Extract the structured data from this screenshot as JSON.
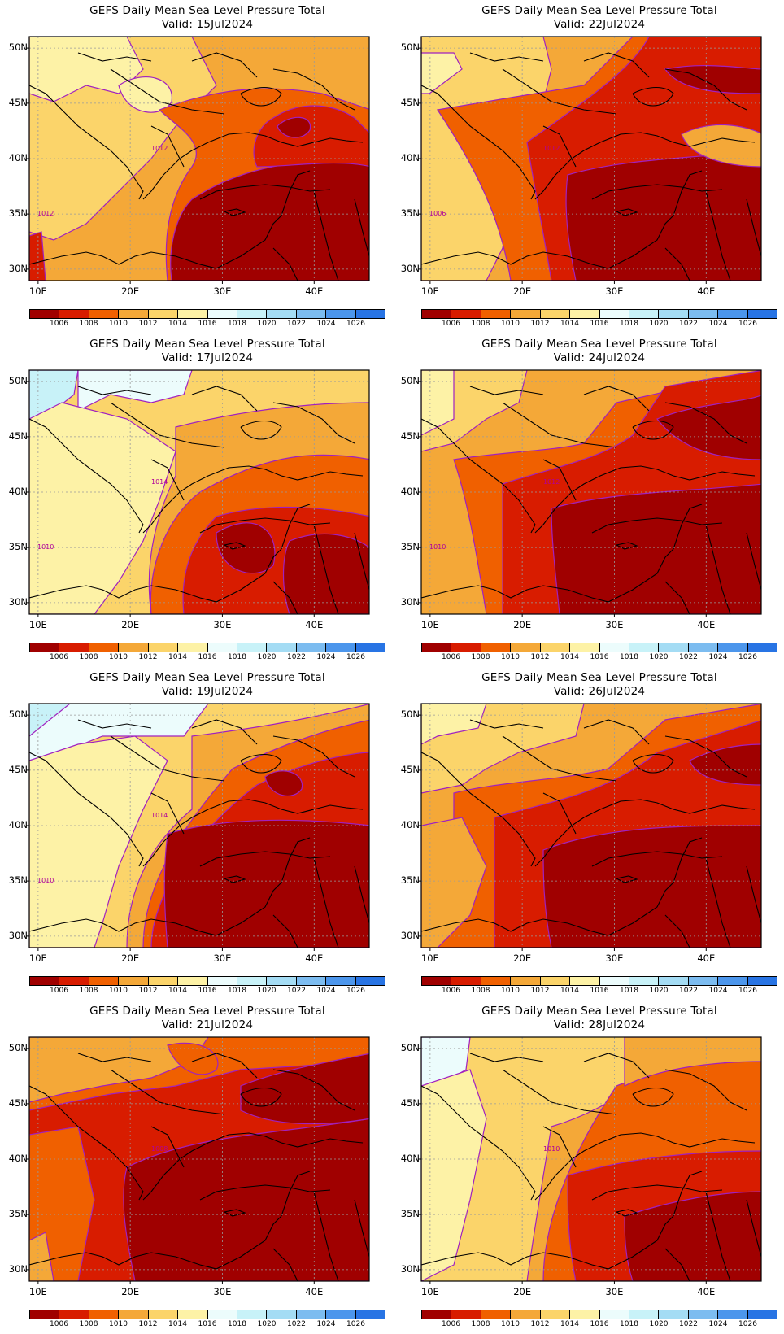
{
  "panels": [
    {
      "title": "GEFS Daily Mean Sea Level Pressure Total",
      "valid": "Valid: 15Jul2024",
      "contour_labels": [
        "1012",
        "1012"
      ],
      "pattern": 0
    },
    {
      "title": "GEFS Daily Mean Sea Level Pressure Total",
      "valid": "Valid: 22Jul2024",
      "contour_labels": [
        "1012",
        "1006"
      ],
      "pattern": 4
    },
    {
      "title": "GEFS Daily Mean Sea Level Pressure Total",
      "valid": "Valid: 17Jul2024",
      "contour_labels": [
        "1014",
        "1010"
      ],
      "pattern": 1
    },
    {
      "title": "GEFS Daily Mean Sea Level Pressure Total",
      "valid": "Valid: 24Jul2024",
      "contour_labels": [
        "1012",
        "1010"
      ],
      "pattern": 5
    },
    {
      "title": "GEFS Daily Mean Sea Level Pressure Total",
      "valid": "Valid: 19Jul2024",
      "contour_labels": [
        "1014",
        "1010"
      ],
      "pattern": 2
    },
    {
      "title": "GEFS Daily Mean Sea Level Pressure Total",
      "valid": "Valid: 26Jul2024",
      "contour_labels": [],
      "pattern": 6
    },
    {
      "title": "GEFS Daily Mean Sea Level Pressure Total",
      "valid": "Valid: 21Jul2024",
      "contour_labels": [
        "1008"
      ],
      "pattern": 3
    },
    {
      "title": "GEFS Daily Mean Sea Level Pressure Total",
      "valid": "Valid: 28Jul2024",
      "contour_labels": [
        "1010"
      ],
      "pattern": 7
    }
  ],
  "axes": {
    "lat_labels": [
      "50N",
      "45N",
      "40N",
      "35N",
      "30N"
    ],
    "lon_labels": [
      "10E",
      "20E",
      "30E",
      "40E"
    ]
  },
  "colorbar": {
    "labels": [
      "1006",
      "1008",
      "1010",
      "1012",
      "1014",
      "1016",
      "1018",
      "1020",
      "1022",
      "1024",
      "1026"
    ],
    "colors": [
      "#a00000",
      "#d81c00",
      "#f06000",
      "#f4a838",
      "#fbd46a",
      "#fdf2a6",
      "#ecfcfc",
      "#c8f2f8",
      "#a4dcf4",
      "#7cbcf0",
      "#4c96ec",
      "#2874e4"
    ]
  },
  "colors": {
    "contour": "#a020c0",
    "grid": "#9a9a9a",
    "border": "#000000"
  }
}
